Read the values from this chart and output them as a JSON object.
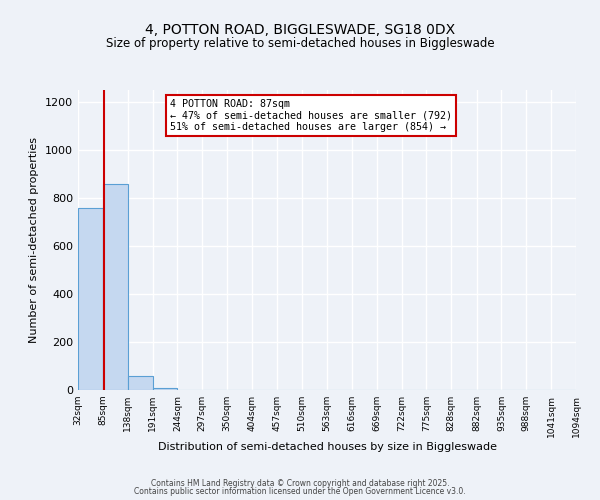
{
  "title_line1": "4, POTTON ROAD, BIGGLESWADE, SG18 0DX",
  "title_line2": "Size of property relative to semi-detached houses in Biggleswade",
  "xlabel": "Distribution of semi-detached houses by size in Biggleswade",
  "ylabel": "Number of semi-detached properties",
  "bar_edges": [
    32,
    85,
    138,
    191,
    244,
    297,
    350,
    404,
    457,
    510,
    563,
    616,
    669,
    722,
    775,
    828,
    882,
    935,
    988,
    1041,
    1094
  ],
  "bar_heights": [
    760,
    860,
    60,
    8,
    0,
    0,
    0,
    0,
    0,
    0,
    0,
    0,
    0,
    0,
    0,
    0,
    0,
    0,
    0,
    0
  ],
  "bar_color": "#c5d8f0",
  "bar_edge_color": "#5a9fd4",
  "property_value": 87,
  "vline_color": "#cc0000",
  "annotation_line1": "4 POTTON ROAD: 87sqm",
  "annotation_line2": "← 47% of semi-detached houses are smaller (792)",
  "annotation_line3": "51% of semi-detached houses are larger (854) →",
  "annotation_box_color": "#ffffff",
  "annotation_box_edge_color": "#cc0000",
  "ylim": [
    0,
    1250
  ],
  "yticks": [
    0,
    200,
    400,
    600,
    800,
    1000,
    1200
  ],
  "tick_labels": [
    "32sqm",
    "85sqm",
    "138sqm",
    "191sqm",
    "244sqm",
    "297sqm",
    "350sqm",
    "404sqm",
    "457sqm",
    "510sqm",
    "563sqm",
    "616sqm",
    "669sqm",
    "722sqm",
    "775sqm",
    "828sqm",
    "882sqm",
    "935sqm",
    "988sqm",
    "1041sqm",
    "1094sqm"
  ],
  "background_color": "#eef2f8",
  "grid_color": "#ffffff",
  "footnote1": "Contains HM Land Registry data © Crown copyright and database right 2025.",
  "footnote2": "Contains public sector information licensed under the Open Government Licence v3.0."
}
